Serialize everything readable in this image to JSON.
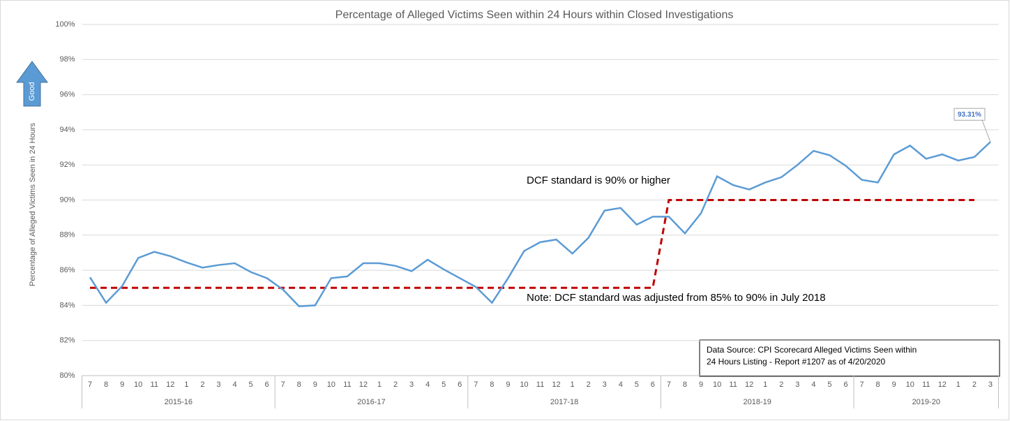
{
  "chart_data": {
    "type": "line",
    "title": "Percentage of Alleged Victims Seen within 24 Hours within Closed Investigations",
    "y_label": "Percentage of Alleged Victims Seen in 24 Hours",
    "direction_label": "Good",
    "category_groups": [
      {
        "label": "2015-16",
        "categories": [
          "7",
          "8",
          "9",
          "10",
          "11",
          "12",
          "1",
          "2",
          "3",
          "4",
          "5",
          "6"
        ]
      },
      {
        "label": "2016-17",
        "categories": [
          "7",
          "8",
          "9",
          "10",
          "11",
          "12",
          "1",
          "2",
          "3",
          "4",
          "5",
          "6"
        ]
      },
      {
        "label": "2017-18",
        "categories": [
          "7",
          "8",
          "9",
          "10",
          "11",
          "12",
          "1",
          "2",
          "3",
          "4",
          "5",
          "6"
        ]
      },
      {
        "label": "2018-19",
        "categories": [
          "7",
          "8",
          "9",
          "10",
          "11",
          "12",
          "1",
          "2",
          "3",
          "4",
          "5",
          "6"
        ]
      },
      {
        "label": "2019-20",
        "categories": [
          "7",
          "8",
          "9",
          "10",
          "11",
          "12",
          "1",
          "2",
          "3"
        ]
      }
    ],
    "series": [
      {
        "color": "#5b9bd5",
        "style": "solid",
        "values": [
          85.6,
          84.15,
          85.1,
          86.7,
          87.05,
          86.8,
          86.45,
          86.15,
          86.3,
          86.4,
          85.9,
          85.55,
          84.9,
          83.95,
          84.0,
          85.55,
          85.65,
          86.4,
          86.4,
          86.25,
          85.95,
          86.6,
          86.05,
          85.55,
          85.05,
          84.15,
          85.55,
          87.1,
          87.6,
          87.75,
          86.95,
          87.85,
          89.4,
          89.55,
          88.6,
          89.05,
          89.05,
          88.1,
          89.25,
          91.35,
          90.85,
          90.6,
          91.0,
          91.3,
          92.0,
          92.8,
          92.55,
          91.95,
          91.15,
          91.0,
          92.6,
          93.1,
          92.35,
          92.6,
          92.25,
          92.45,
          93.31
        ],
        "value_labels": [
          null,
          null,
          null,
          null,
          null,
          null,
          null,
          null,
          null,
          null,
          null,
          null,
          null,
          null,
          null,
          null,
          null,
          null,
          null,
          null,
          null,
          null,
          null,
          null,
          null,
          null,
          null,
          null,
          null,
          null,
          null,
          null,
          null,
          null,
          null,
          null,
          null,
          null,
          null,
          null,
          null,
          null,
          null,
          null,
          null,
          null,
          null,
          null,
          null,
          null,
          null,
          null,
          null,
          null,
          null,
          null,
          "93.31%"
        ]
      },
      {
        "color": "#c00000",
        "style": "dashed",
        "values": [
          85,
          85,
          85,
          85,
          85,
          85,
          85,
          85,
          85,
          85,
          85,
          85,
          85,
          85,
          85,
          85,
          85,
          85,
          85,
          85,
          85,
          85,
          85,
          85,
          85,
          85,
          85,
          85,
          85,
          85,
          85,
          85,
          85,
          85,
          85,
          85,
          90,
          90,
          90,
          90,
          90,
          90,
          90,
          90,
          90,
          90,
          90,
          90,
          90,
          90,
          90,
          90,
          90,
          90,
          90,
          90,
          null
        ]
      }
    ],
    "ylim": [
      80,
      100
    ],
    "yticks": [
      {
        "value": 80,
        "label": "80%"
      },
      {
        "value": 82,
        "label": "82%"
      },
      {
        "value": 84,
        "label": "84%"
      },
      {
        "value": 86,
        "label": "86%"
      },
      {
        "value": 88,
        "label": "88%"
      },
      {
        "value": 90,
        "label": "90%"
      },
      {
        "value": 92,
        "label": "92%"
      },
      {
        "value": 94,
        "label": "94%"
      },
      {
        "value": 96,
        "label": "96%"
      },
      {
        "value": 98,
        "label": "98%"
      },
      {
        "value": 100,
        "label": "100%"
      }
    ],
    "grid": true,
    "annotations": [
      "DCF standard is 90% or higher",
      "Note: DCF standard was adjusted from 85% to 90% in July 2018"
    ],
    "source": [
      "Data Source: CPI Scorecard Alleged Victims Seen within",
      "24 Hours Listing - Report #1207  as of 4/20/2020"
    ]
  }
}
